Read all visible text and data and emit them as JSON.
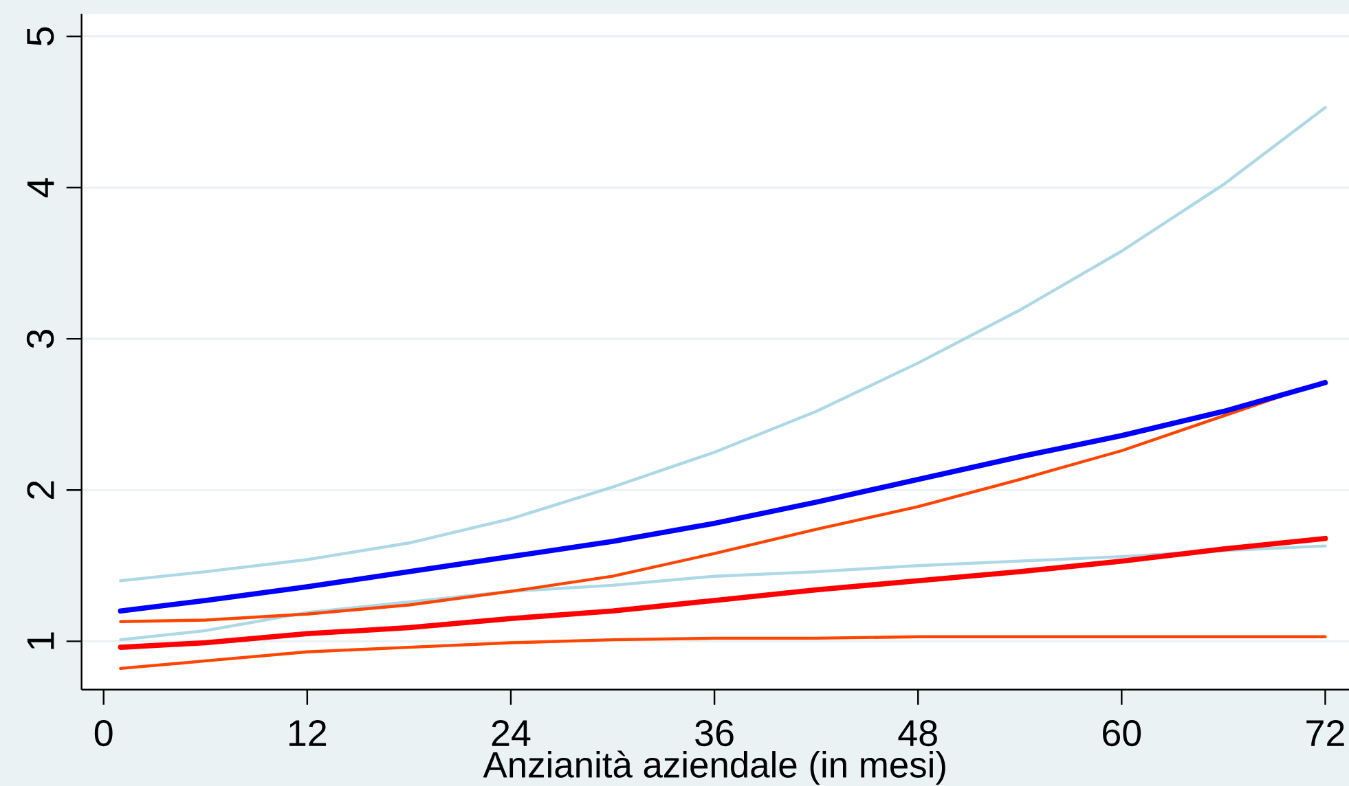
{
  "chart_data": {
    "type": "line",
    "xlabel": "Anzianità aziendale (in mesi)",
    "x": [
      1,
      6,
      12,
      18,
      24,
      30,
      36,
      42,
      48,
      54,
      60,
      66,
      72
    ],
    "series": [
      {
        "color": "#add8e6",
        "values": [
          1.4,
          1.46,
          1.54,
          1.65,
          1.81,
          2.02,
          2.25,
          2.52,
          2.84,
          3.19,
          3.58,
          4.02,
          4.53
        ]
      },
      {
        "color": "#add8e6",
        "values": [
          1.01,
          1.07,
          1.19,
          1.26,
          1.33,
          1.37,
          1.43,
          1.46,
          1.5,
          1.53,
          1.56,
          1.6,
          1.63
        ]
      },
      {
        "color": "#ff4500",
        "values": [
          1.13,
          1.14,
          1.18,
          1.24,
          1.33,
          1.43,
          1.58,
          1.74,
          1.89,
          2.07,
          2.26,
          2.49,
          2.72
        ]
      },
      {
        "color": "#ff4500",
        "values": [
          0.82,
          0.87,
          0.93,
          0.96,
          0.99,
          1.01,
          1.02,
          1.02,
          1.03,
          1.03,
          1.03,
          1.03,
          1.03
        ]
      },
      {
        "color": "#0000ff",
        "values": [
          1.2,
          1.27,
          1.36,
          1.46,
          1.56,
          1.66,
          1.78,
          1.92,
          2.07,
          2.22,
          2.36,
          2.52,
          2.71
        ]
      },
      {
        "color": "#ff0000",
        "values": [
          0.96,
          0.99,
          1.05,
          1.09,
          1.15,
          1.2,
          1.27,
          1.34,
          1.4,
          1.46,
          1.53,
          1.61,
          1.68
        ]
      }
    ],
    "xlim": [
      -1.3,
      73.4
    ],
    "ylim": [
      0.68,
      5.15
    ],
    "xticks": [
      0,
      12,
      24,
      36,
      48,
      60,
      72
    ],
    "yticks": [
      1,
      2,
      3,
      4,
      5
    ],
    "grid": "y",
    "marker": "none",
    "line_style": "solid"
  }
}
